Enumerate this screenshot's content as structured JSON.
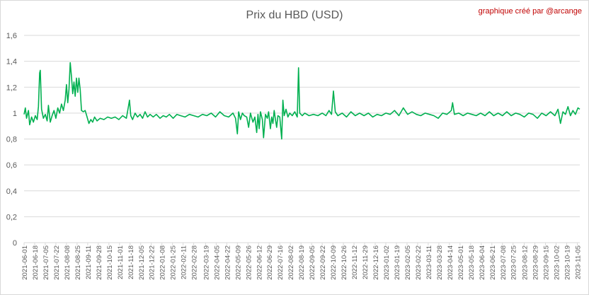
{
  "title": "Prix du HBD (USD)",
  "credit": "graphique créé par @arcange",
  "colors": {
    "series": "#00b050",
    "grid": "#d9d9d9",
    "axis_text": "#595959",
    "credit": "#c00000"
  },
  "chart_data": {
    "type": "line",
    "title": "Prix du HBD (USD)",
    "xlabel": "",
    "ylabel": "",
    "ylim": [
      0,
      1.6
    ],
    "yticks": [
      "0",
      "0,2",
      "0,4",
      "0,6",
      "0,8",
      "1",
      "1,2",
      "1,4",
      "1,6"
    ],
    "grid": true,
    "legend": "none",
    "x_start": "2021-06-01",
    "x_end": "2023-11-09",
    "xticks": [
      "2021-06-01",
      "2021-06-18",
      "2021-07-05",
      "2021-07-22",
      "2021-08-08",
      "2021-08-25",
      "2021-09-11",
      "2021-09-28",
      "2021-10-15",
      "2021-11-01",
      "2021-11-18",
      "2021-12-05",
      "2021-12-22",
      "2022-01-08",
      "2022-01-25",
      "2022-02-11",
      "2022-02-28",
      "2022-03-19",
      "2022-04-05",
      "2022-04-22",
      "2022-05-09",
      "2022-05-26",
      "2022-06-12",
      "2022-06-29",
      "2022-07-16",
      "2022-08-02",
      "2022-08-19",
      "2022-09-05",
      "2022-09-22",
      "2022-10-09",
      "2022-10-26",
      "2022-11-12",
      "2022-11-29",
      "2022-12-16",
      "2023-01-02",
      "2023-01-19",
      "2023-02-05",
      "2023-02-22",
      "2023-03-11",
      "2023-03-28",
      "2023-04-14",
      "2023-05-01",
      "2023-05-18",
      "2023-06-04",
      "2023-06-21",
      "2023-07-08",
      "2023-07-25",
      "2023-08-12",
      "2023-08-29",
      "2023-09-15",
      "2023-10-02",
      "2023-10-19",
      "2023-11-05"
    ],
    "series": [
      {
        "points": [
          [
            "2021-06-01",
            0.99
          ],
          [
            "2021-06-03",
            1.04
          ],
          [
            "2021-06-05",
            0.96
          ],
          [
            "2021-06-08",
            1.02
          ],
          [
            "2021-06-10",
            0.91
          ],
          [
            "2021-06-13",
            0.97
          ],
          [
            "2021-06-16",
            0.93
          ],
          [
            "2021-06-19",
            0.98
          ],
          [
            "2021-06-22",
            0.95
          ],
          [
            "2021-06-24",
            1.05
          ],
          [
            "2021-06-26",
            1.31
          ],
          [
            "2021-06-27",
            1.33
          ],
          [
            "2021-06-29",
            1.03
          ],
          [
            "2021-07-02",
            0.96
          ],
          [
            "2021-07-05",
            0.99
          ],
          [
            "2021-07-08",
            0.94
          ],
          [
            "2021-07-10",
            1.06
          ],
          [
            "2021-07-13",
            0.93
          ],
          [
            "2021-07-16",
            0.98
          ],
          [
            "2021-07-19",
            1.02
          ],
          [
            "2021-07-22",
            0.96
          ],
          [
            "2021-07-25",
            1.04
          ],
          [
            "2021-07-28",
            1.0
          ],
          [
            "2021-07-31",
            1.07
          ],
          [
            "2021-08-03",
            1.02
          ],
          [
            "2021-08-06",
            1.1
          ],
          [
            "2021-08-08",
            1.22
          ],
          [
            "2021-08-10",
            1.08
          ],
          [
            "2021-08-12",
            1.18
          ],
          [
            "2021-08-14",
            1.39
          ],
          [
            "2021-08-16",
            1.28
          ],
          [
            "2021-08-18",
            1.15
          ],
          [
            "2021-08-20",
            1.24
          ],
          [
            "2021-08-22",
            1.13
          ],
          [
            "2021-08-24",
            1.27
          ],
          [
            "2021-08-26",
            1.16
          ],
          [
            "2021-08-28",
            1.27
          ],
          [
            "2021-08-30",
            1.18
          ],
          [
            "2021-09-01",
            1.02
          ],
          [
            "2021-09-04",
            1.01
          ],
          [
            "2021-09-07",
            1.02
          ],
          [
            "2021-09-10",
            0.97
          ],
          [
            "2021-09-13",
            0.92
          ],
          [
            "2021-09-16",
            0.95
          ],
          [
            "2021-09-19",
            0.93
          ],
          [
            "2021-09-22",
            0.97
          ],
          [
            "2021-09-26",
            0.94
          ],
          [
            "2021-10-01",
            0.96
          ],
          [
            "2021-10-07",
            0.95
          ],
          [
            "2021-10-13",
            0.97
          ],
          [
            "2021-10-19",
            0.96
          ],
          [
            "2021-10-25",
            0.97
          ],
          [
            "2021-10-31",
            0.95
          ],
          [
            "2021-11-06",
            0.98
          ],
          [
            "2021-11-12",
            0.96
          ],
          [
            "2021-11-15",
            1.04
          ],
          [
            "2021-11-17",
            1.1
          ],
          [
            "2021-11-19",
            0.98
          ],
          [
            "2021-11-22",
            0.95
          ],
          [
            "2021-11-26",
            1.0
          ],
          [
            "2021-11-30",
            0.97
          ],
          [
            "2021-12-04",
            0.99
          ],
          [
            "2021-12-08",
            0.96
          ],
          [
            "2021-12-12",
            1.01
          ],
          [
            "2021-12-16",
            0.97
          ],
          [
            "2021-12-20",
            0.99
          ],
          [
            "2021-12-25",
            0.97
          ],
          [
            "2021-12-30",
            0.99
          ],
          [
            "2022-01-05",
            0.96
          ],
          [
            "2022-01-10",
            0.98
          ],
          [
            "2022-01-15",
            0.97
          ],
          [
            "2022-01-20",
            0.99
          ],
          [
            "2022-01-26",
            0.96
          ],
          [
            "2022-02-01",
            0.99
          ],
          [
            "2022-02-07",
            0.98
          ],
          [
            "2022-02-14",
            0.97
          ],
          [
            "2022-02-21",
            0.99
          ],
          [
            "2022-02-28",
            0.98
          ],
          [
            "2022-03-07",
            0.97
          ],
          [
            "2022-03-14",
            0.99
          ],
          [
            "2022-03-21",
            0.98
          ],
          [
            "2022-03-28",
            1.0
          ],
          [
            "2022-04-04",
            0.97
          ],
          [
            "2022-04-11",
            1.01
          ],
          [
            "2022-04-18",
            0.98
          ],
          [
            "2022-04-25",
            0.97
          ],
          [
            "2022-05-02",
            1.0
          ],
          [
            "2022-05-06",
            0.96
          ],
          [
            "2022-05-09",
            0.84
          ],
          [
            "2022-05-11",
            1.01
          ],
          [
            "2022-05-14",
            0.95
          ],
          [
            "2022-05-17",
            1.0
          ],
          [
            "2022-05-20",
            0.98
          ],
          [
            "2022-05-24",
            0.97
          ],
          [
            "2022-05-27",
            0.89
          ],
          [
            "2022-05-30",
            1.0
          ],
          [
            "2022-06-03",
            0.93
          ],
          [
            "2022-06-06",
            0.97
          ],
          [
            "2022-06-09",
            0.85
          ],
          [
            "2022-06-11",
            0.99
          ],
          [
            "2022-06-13",
            0.88
          ],
          [
            "2022-06-15",
            1.01
          ],
          [
            "2022-06-18",
            0.95
          ],
          [
            "2022-06-20",
            0.81
          ],
          [
            "2022-06-23",
            0.99
          ],
          [
            "2022-06-26",
            0.96
          ],
          [
            "2022-06-28",
            1.01
          ],
          [
            "2022-07-01",
            0.88
          ],
          [
            "2022-07-03",
            0.97
          ],
          [
            "2022-07-05",
            0.92
          ],
          [
            "2022-07-07",
            1.02
          ],
          [
            "2022-07-09",
            0.95
          ],
          [
            "2022-07-11",
            0.89
          ],
          [
            "2022-07-13",
            0.98
          ],
          [
            "2022-07-16",
            0.97
          ],
          [
            "2022-07-19",
            0.8
          ],
          [
            "2022-07-21",
            1.1
          ],
          [
            "2022-07-23",
            0.98
          ],
          [
            "2022-07-26",
            1.03
          ],
          [
            "2022-07-29",
            0.97
          ],
          [
            "2022-08-01",
            1.0
          ],
          [
            "2022-08-05",
            0.98
          ],
          [
            "2022-08-09",
            1.01
          ],
          [
            "2022-08-13",
            0.97
          ],
          [
            "2022-08-15",
            1.35
          ],
          [
            "2022-08-17",
            1.0
          ],
          [
            "2022-08-21",
            0.98
          ],
          [
            "2022-08-25",
            1.0
          ],
          [
            "2022-09-01",
            0.98
          ],
          [
            "2022-09-08",
            0.99
          ],
          [
            "2022-09-15",
            0.98
          ],
          [
            "2022-09-22",
            1.0
          ],
          [
            "2022-09-28",
            0.98
          ],
          [
            "2022-10-03",
            1.02
          ],
          [
            "2022-10-07",
            0.99
          ],
          [
            "2022-10-10",
            1.17
          ],
          [
            "2022-10-13",
            1.01
          ],
          [
            "2022-10-17",
            0.98
          ],
          [
            "2022-10-24",
            1.0
          ],
          [
            "2022-10-31",
            0.97
          ],
          [
            "2022-11-07",
            1.01
          ],
          [
            "2022-11-14",
            0.98
          ],
          [
            "2022-11-21",
            1.0
          ],
          [
            "2022-11-28",
            0.98
          ],
          [
            "2022-12-05",
            1.0
          ],
          [
            "2022-12-12",
            0.97
          ],
          [
            "2022-12-19",
            0.99
          ],
          [
            "2022-12-26",
            0.98
          ],
          [
            "2023-01-02",
            1.0
          ],
          [
            "2023-01-09",
            0.99
          ],
          [
            "2023-01-16",
            1.02
          ],
          [
            "2023-01-23",
            0.98
          ],
          [
            "2023-01-30",
            1.04
          ],
          [
            "2023-02-06",
            0.99
          ],
          [
            "2023-02-13",
            1.01
          ],
          [
            "2023-02-20",
            0.99
          ],
          [
            "2023-02-27",
            0.98
          ],
          [
            "2023-03-06",
            1.0
          ],
          [
            "2023-03-13",
            0.99
          ],
          [
            "2023-03-20",
            0.98
          ],
          [
            "2023-03-27",
            0.96
          ],
          [
            "2023-04-03",
            1.0
          ],
          [
            "2023-04-10",
            0.99
          ],
          [
            "2023-04-17",
            1.02
          ],
          [
            "2023-04-19",
            1.08
          ],
          [
            "2023-04-22",
            0.99
          ],
          [
            "2023-04-29",
            1.0
          ],
          [
            "2023-05-06",
            0.98
          ],
          [
            "2023-05-13",
            1.0
          ],
          [
            "2023-05-20",
            0.99
          ],
          [
            "2023-05-27",
            0.98
          ],
          [
            "2023-06-03",
            1.0
          ],
          [
            "2023-06-10",
            0.98
          ],
          [
            "2023-06-17",
            1.01
          ],
          [
            "2023-06-24",
            0.98
          ],
          [
            "2023-07-01",
            1.0
          ],
          [
            "2023-07-08",
            0.98
          ],
          [
            "2023-07-15",
            1.01
          ],
          [
            "2023-07-22",
            0.98
          ],
          [
            "2023-07-29",
            1.0
          ],
          [
            "2023-08-05",
            0.99
          ],
          [
            "2023-08-12",
            0.97
          ],
          [
            "2023-08-19",
            1.0
          ],
          [
            "2023-08-26",
            0.99
          ],
          [
            "2023-09-02",
            0.96
          ],
          [
            "2023-09-09",
            1.0
          ],
          [
            "2023-09-16",
            0.98
          ],
          [
            "2023-09-23",
            1.01
          ],
          [
            "2023-09-30",
            0.98
          ],
          [
            "2023-10-05",
            1.03
          ],
          [
            "2023-10-09",
            0.92
          ],
          [
            "2023-10-13",
            1.01
          ],
          [
            "2023-10-17",
            0.99
          ],
          [
            "2023-10-21",
            1.05
          ],
          [
            "2023-10-25",
            0.98
          ],
          [
            "2023-10-29",
            1.02
          ],
          [
            "2023-11-02",
            0.99
          ],
          [
            "2023-11-06",
            1.04
          ],
          [
            "2023-11-09",
            1.03
          ]
        ]
      }
    ]
  }
}
